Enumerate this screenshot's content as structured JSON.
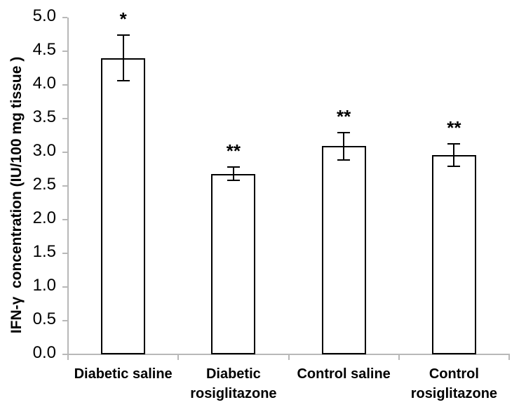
{
  "figure": {
    "background_color": "#ffffff",
    "axis_color": "#b8b8b8",
    "bar_fill_color": "#ffffff",
    "bar_border_color": "#000000",
    "text_color": "#000000"
  },
  "chart_data": {
    "type": "bar",
    "title": "",
    "xlabel": "",
    "ylabel": "IFN-γ  concentration (IU/100 mg tissue )",
    "ylim": [
      0.0,
      5.0
    ],
    "ytick_step": 0.5,
    "ytick_labels": [
      "0.0",
      "0.5",
      "1.0",
      "1.5",
      "2.0",
      "2.5",
      "3.0",
      "3.5",
      "4.0",
      "4.5",
      "5.0"
    ],
    "grid": false,
    "legend": "none",
    "categories": [
      "Diabetic saline",
      "Diabetic\nrosiglitazone",
      "Control saline",
      "Control\nrosiglitazone"
    ],
    "values": [
      4.4,
      2.68,
      3.09,
      2.96
    ],
    "error_bars": [
      0.34,
      0.1,
      0.2,
      0.17
    ],
    "significance_markers": [
      "*",
      "**",
      "**",
      "**"
    ]
  }
}
